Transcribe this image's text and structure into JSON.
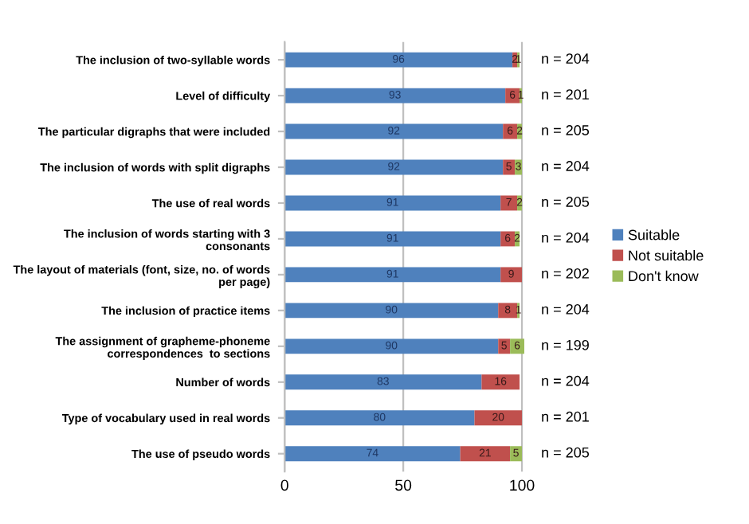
{
  "chart_data": {
    "type": "bar",
    "orientation": "horizontal",
    "stacked": true,
    "categories": [
      "The inclusion of two-syllable words",
      "Level of difficulty",
      "The particular digraphs that were included",
      "The inclusion of words with split digraphs",
      "The use of real words",
      "The inclusion of words starting with 3 consonants",
      "The layout of materials (font, size, no. of words per page)",
      "The inclusion of practice items",
      "The assignment of grapheme-phoneme correspondences  to sections",
      "Number of words",
      "Type of vocabulary used in real words",
      "The use of pseudo words"
    ],
    "series": [
      {
        "name": "Suitable",
        "color": "#4f81bd",
        "values": [
          96,
          93,
          92,
          92,
          91,
          91,
          91,
          90,
          90,
          83,
          80,
          74
        ]
      },
      {
        "name": "Not suitable",
        "color": "#c0504d",
        "values": [
          2,
          6,
          6,
          5,
          7,
          6,
          9,
          8,
          5,
          16,
          20,
          21
        ]
      },
      {
        "name": "Don't know",
        "color": "#9bbb59",
        "values": [
          1,
          1,
          2,
          3,
          2,
          2,
          null,
          1,
          6,
          null,
          null,
          5
        ]
      }
    ],
    "data_labels": true,
    "xlim": [
      0,
      101
    ],
    "xticks": [
      0,
      50,
      100
    ],
    "grid": "x",
    "legend": "right",
    "annotations": [
      "n = 204",
      "n = 201",
      "n = 205",
      "n = 204",
      "n = 205",
      "n = 204",
      "n = 202",
      "n = 204",
      "n = 199",
      "n = 204",
      "n = 201",
      "n = 205"
    ]
  }
}
